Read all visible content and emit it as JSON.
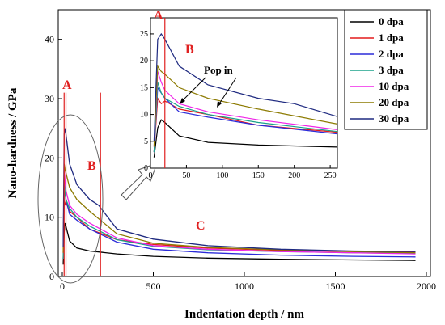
{
  "chart_data": {
    "type": "line",
    "xlabel": "Indentation depth / nm",
    "ylabel": "Nano-hardness / GPa",
    "xlim": [
      0,
      2000
    ],
    "ylim": [
      0,
      45
    ],
    "xticks": [
      0,
      500,
      1000,
      1500,
      2000
    ],
    "yticks": [
      0,
      10,
      20,
      30,
      40
    ],
    "grid": false,
    "legend_placement": "top-right",
    "region_labels": [
      "A",
      "B",
      "C"
    ],
    "region_markers_x": [
      10,
      20,
      210
    ],
    "series": [
      {
        "name": "0 dpa",
        "color": "#000000",
        "points": [
          [
            5,
            2
          ],
          [
            10,
            7.5
          ],
          [
            15,
            9
          ],
          [
            20,
            8.5
          ],
          [
            40,
            6
          ],
          [
            80,
            4.8
          ],
          [
            150,
            4.3
          ],
          [
            300,
            3.8
          ],
          [
            500,
            3.4
          ],
          [
            800,
            3.1
          ],
          [
            1200,
            2.9
          ],
          [
            1600,
            2.8
          ],
          [
            1940,
            2.7
          ]
        ]
      },
      {
        "name": "1 dpa",
        "color": "#e41a1c",
        "points": [
          [
            5,
            3
          ],
          [
            10,
            13
          ],
          [
            15,
            12
          ],
          [
            20,
            12.5
          ],
          [
            40,
            11
          ],
          [
            80,
            10
          ],
          [
            150,
            8
          ],
          [
            300,
            6.2
          ],
          [
            500,
            5.4
          ],
          [
            800,
            4.8
          ],
          [
            1200,
            4.4
          ],
          [
            1600,
            4.2
          ],
          [
            1940,
            4.1
          ]
        ]
      },
      {
        "name": "2 dpa",
        "color": "#2b2bd9",
        "points": [
          [
            5,
            3
          ],
          [
            10,
            15
          ],
          [
            15,
            14
          ],
          [
            20,
            13
          ],
          [
            40,
            10.5
          ],
          [
            80,
            9.5
          ],
          [
            150,
            8
          ],
          [
            300,
            5.8
          ],
          [
            500,
            4.6
          ],
          [
            800,
            4
          ],
          [
            1200,
            3.6
          ],
          [
            1600,
            3.4
          ],
          [
            1940,
            3.3
          ]
        ]
      },
      {
        "name": "3 dpa",
        "color": "#1aa28a",
        "points": [
          [
            5,
            3
          ],
          [
            10,
            16
          ],
          [
            15,
            14
          ],
          [
            20,
            13
          ],
          [
            40,
            11.5
          ],
          [
            80,
            10
          ],
          [
            150,
            8.5
          ],
          [
            300,
            6.2
          ],
          [
            500,
            5.1
          ],
          [
            800,
            4.5
          ],
          [
            1200,
            4.2
          ],
          [
            1600,
            4
          ],
          [
            1940,
            3.9
          ]
        ]
      },
      {
        "name": "10 dpa",
        "color": "#f025e8",
        "points": [
          [
            5,
            4
          ],
          [
            10,
            18
          ],
          [
            15,
            16
          ],
          [
            20,
            14.5
          ],
          [
            40,
            12
          ],
          [
            80,
            10.5
          ],
          [
            150,
            9
          ],
          [
            300,
            6.5
          ],
          [
            500,
            5.2
          ],
          [
            800,
            4.6
          ],
          [
            1200,
            4.2
          ],
          [
            1600,
            4
          ],
          [
            1940,
            3.8
          ]
        ]
      },
      {
        "name": "20 dpa",
        "color": "#8c7a00",
        "points": [
          [
            5,
            4
          ],
          [
            10,
            19
          ],
          [
            15,
            18
          ],
          [
            20,
            17.5
          ],
          [
            40,
            15
          ],
          [
            80,
            13
          ],
          [
            150,
            11
          ],
          [
            300,
            7.2
          ],
          [
            500,
            5.6
          ],
          [
            800,
            4.9
          ],
          [
            1200,
            4.5
          ],
          [
            1600,
            4.2
          ],
          [
            1940,
            4
          ]
        ]
      },
      {
        "name": "30 dpa",
        "color": "#1f2a80",
        "points": [
          [
            5,
            5
          ],
          [
            10,
            24
          ],
          [
            15,
            25
          ],
          [
            20,
            24
          ],
          [
            40,
            19
          ],
          [
            80,
            15.5
          ],
          [
            150,
            13
          ],
          [
            200,
            12
          ],
          [
            300,
            8
          ],
          [
            500,
            6.3
          ],
          [
            800,
            5.2
          ],
          [
            1200,
            4.6
          ],
          [
            1600,
            4.3
          ],
          [
            1940,
            4.2
          ]
        ]
      }
    ],
    "inset": {
      "xlim": [
        0,
        260
      ],
      "ylim": [
        0,
        28
      ],
      "xticks": [
        0,
        50,
        100,
        150,
        200,
        250
      ],
      "yticks": [
        0,
        5,
        10,
        15,
        20,
        25
      ],
      "region_labels": [
        "A",
        "B"
      ],
      "annotation": "Pop in"
    }
  }
}
